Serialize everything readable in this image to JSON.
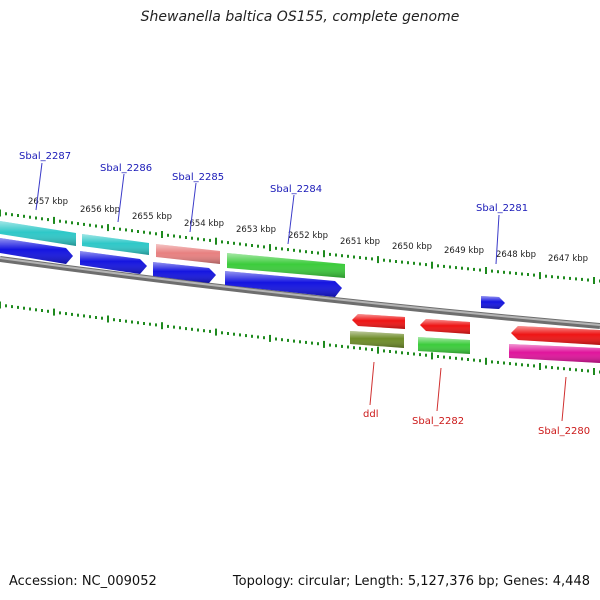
{
  "title": "Shewanella baltica OS155, complete genome",
  "accession": "Accession: NC_009052",
  "topology": "Topology: circular; Length: 5,127,376 bp; Genes: 4,448",
  "scale": {
    "unit": "kbp",
    "ticks": [
      {
        "kbp": 2657,
        "label": "2657 kbp"
      },
      {
        "kbp": 2656,
        "label": "2656 kbp"
      },
      {
        "kbp": 2655,
        "label": "2655 kbp"
      },
      {
        "kbp": 2654,
        "label": "2654 kbp"
      },
      {
        "kbp": 2653,
        "label": "2653 kbp"
      },
      {
        "kbp": 2652,
        "label": "2652 kbp"
      },
      {
        "kbp": 2651,
        "label": "2651 kbp"
      },
      {
        "kbp": 2650,
        "label": "2650 kbp"
      },
      {
        "kbp": 2649,
        "label": "2649 kbp"
      },
      {
        "kbp": 2648,
        "label": "2648 kbp"
      },
      {
        "kbp": 2647,
        "label": "2647 kbp"
      }
    ]
  },
  "colors": {
    "forward_label": "#1a1ab8",
    "reverse_label": "#cc1a1a",
    "scale_tick": "#1e8a1e",
    "backbone": "#8a8a8a",
    "cds_blue": "#1414e0",
    "cyan": "#2ec8c8",
    "salmon": "#e88080",
    "green": "#3ccc3c",
    "red": "#ee1414",
    "olive": "#6e8c28",
    "magenta": "#e0149c"
  },
  "genes": [
    {
      "label": "Sbal_2287",
      "strand": "forward"
    },
    {
      "label": "Sbal_2286",
      "strand": "forward"
    },
    {
      "label": "Sbal_2285",
      "strand": "forward"
    },
    {
      "label": "Sbal_2284",
      "strand": "forward"
    },
    {
      "label": "Sbal_2281",
      "strand": "forward"
    },
    {
      "label": "ddl",
      "strand": "reverse"
    },
    {
      "label": "Sbal_2282",
      "strand": "reverse"
    },
    {
      "label": "Sbal_2280",
      "strand": "reverse"
    }
  ]
}
